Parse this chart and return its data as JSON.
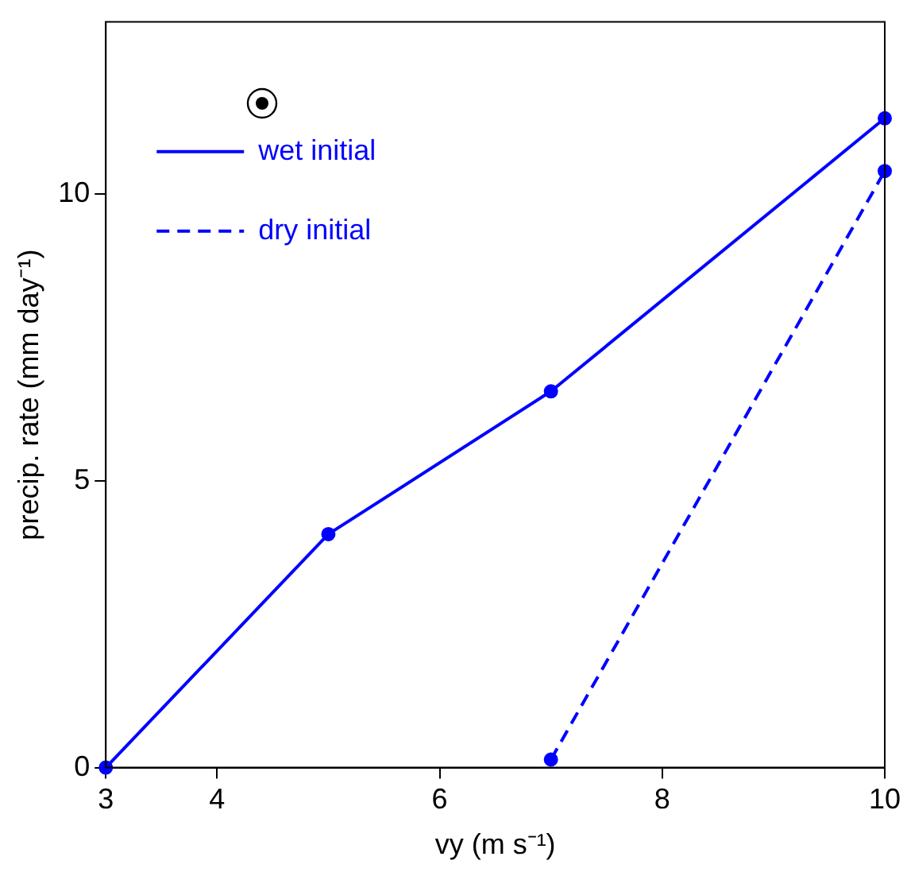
{
  "chart_data": {
    "type": "line",
    "xlabel": "vy (m s⁻¹)",
    "ylabel": "precip. rate (mm day⁻¹)",
    "xlim": [
      3,
      10
    ],
    "xticks": [
      3,
      4,
      6,
      8,
      10
    ],
    "ylim": [
      0,
      13
    ],
    "yticks": [
      0,
      5,
      10
    ],
    "grid": false,
    "legend": "top left",
    "marker": "circle",
    "series": [
      {
        "name": "wet initial",
        "color": "#0000ff",
        "line_style": "solid",
        "x": [
          3,
          5,
          7,
          10
        ],
        "values": [
          0,
          4.07,
          6.56,
          11.32
        ]
      },
      {
        "name": "dry initial",
        "color": "#0000ff",
        "line_style": "dashed",
        "x": [
          7,
          10
        ],
        "values": [
          0.14,
          10.4
        ]
      }
    ]
  }
}
